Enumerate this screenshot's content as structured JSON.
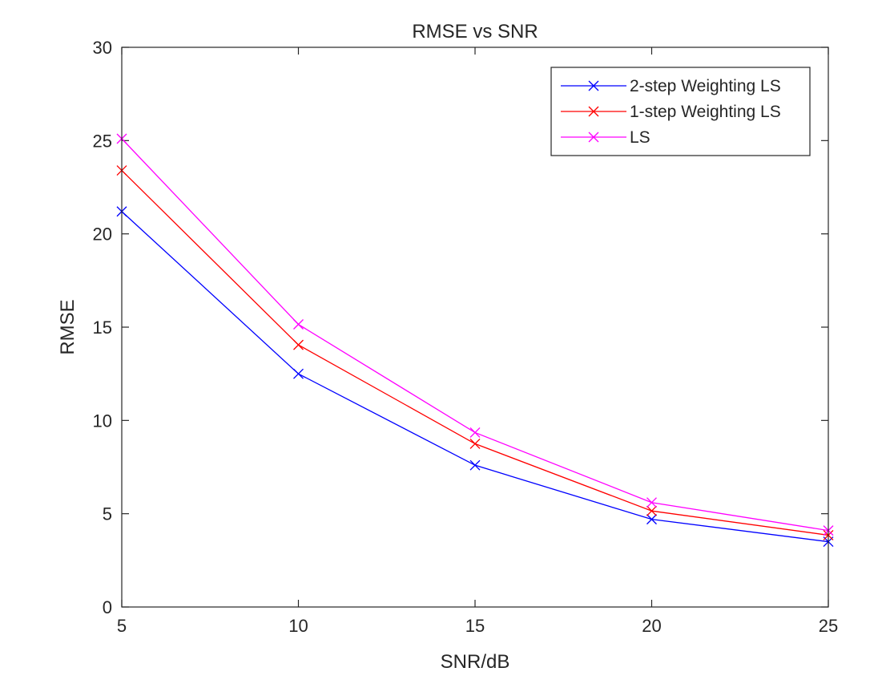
{
  "chart_data": {
    "type": "line",
    "title": "RMSE vs SNR",
    "xlabel": "SNR/dB",
    "ylabel": "RMSE",
    "x": [
      5,
      10,
      15,
      20,
      25
    ],
    "xlim": [
      5,
      25
    ],
    "ylim": [
      0,
      30
    ],
    "xticks": [
      5,
      10,
      15,
      20,
      25
    ],
    "yticks": [
      0,
      5,
      10,
      15,
      20,
      25,
      30
    ],
    "grid": false,
    "legend_position": "top-right",
    "marker": "x",
    "series": [
      {
        "name": "2-step Weighting LS",
        "color": "#0000ff",
        "values": [
          21.2,
          12.5,
          7.6,
          4.7,
          3.5
        ]
      },
      {
        "name": "1-step Weighting LS",
        "color": "#ff0000",
        "values": [
          23.4,
          14.05,
          8.75,
          5.15,
          3.85
        ]
      },
      {
        "name": "LS",
        "color": "#ff00ff",
        "values": [
          25.1,
          15.15,
          9.35,
          5.6,
          4.1
        ]
      }
    ]
  }
}
